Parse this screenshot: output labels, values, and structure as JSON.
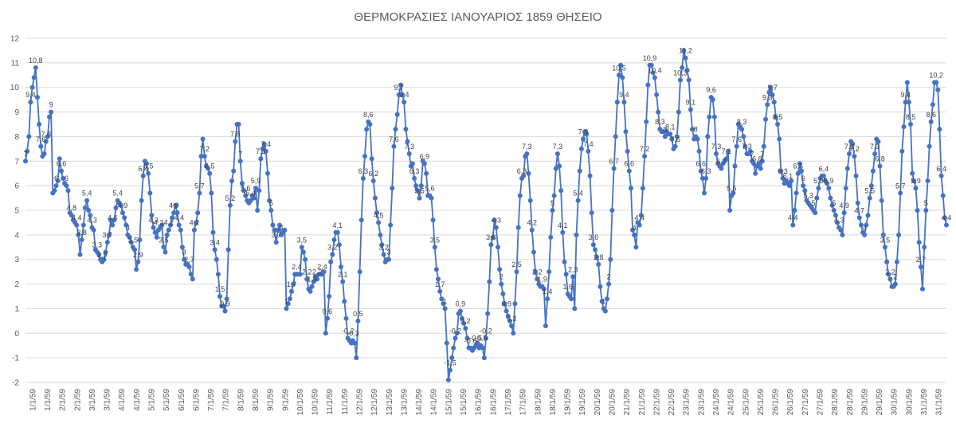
{
  "chart_data": {
    "type": "line",
    "title": "ΘΕΡΜΟΚΡΑΣΙΕΣ ΙΑΝΟΥΑΡΙΟΣ 1859 ΘΗΣΕΙΟ",
    "xlabel": "",
    "ylabel": "",
    "ylim": [
      -2,
      12
    ],
    "yticks": [
      -2,
      -1,
      0,
      1,
      2,
      3,
      4,
      5,
      6,
      7,
      8,
      9,
      10,
      11,
      12
    ],
    "grid": true,
    "legend": "none",
    "x_tick_labels": [
      "1/1/59",
      "1/1/59",
      "2/1/59",
      "2/1/59",
      "3/1/59",
      "3/1/59",
      "4/1/59",
      "4/1/59",
      "5/1/59",
      "5/1/59",
      "6/1/59",
      "6/1/59",
      "7/1/59",
      "7/1/59",
      "8/1/59",
      "8/1/59",
      "9/1/59",
      "9/1/59",
      "10/1/59",
      "10/1/59",
      "11/1/59",
      "11/1/59",
      "12/1/59",
      "12/1/59",
      "13/1/59",
      "13/1/59",
      "14/1/59",
      "14/1/59",
      "15/1/59",
      "15/1/59",
      "16/1/59",
      "16/1/59",
      "17/1/59",
      "17/1/59",
      "18/1/59",
      "18/1/59",
      "19/1/59",
      "19/1/59",
      "20/1/59",
      "20/1/59",
      "21/1/59",
      "21/1/59",
      "22/1/59",
      "22/1/59",
      "23/1/59",
      "23/1/59",
      "24/1/59",
      "24/1/59",
      "25/1/59",
      "25/1/59",
      "26/1/59",
      "26/1/59",
      "27/1/59",
      "27/1/59",
      "28/1/59",
      "28/1/59",
      "29/1/59",
      "29/1/59",
      "30/1/59",
      "30/1/59",
      "31/1/59",
      "31/1/59"
    ],
    "series": [
      {
        "color": "#4472c4",
        "values": [
          7.0,
          7.4,
          8.0,
          9.4,
          10.0,
          10.4,
          10.8,
          9.6,
          8.5,
          7.6,
          7.2,
          7.3,
          7.8,
          8.0,
          8.8,
          9.0,
          5.7,
          5.8,
          6.0,
          6.2,
          7.1,
          6.6,
          6.3,
          6.1,
          6.0,
          5.8,
          4.9,
          4.8,
          4.6,
          4.5,
          4.4,
          4.0,
          3.2,
          3.8,
          4.4,
          5.1,
          5.4,
          5.0,
          4.8,
          4.3,
          4.2,
          3.4,
          3.3,
          3.2,
          3.0,
          2.9,
          3.0,
          3.3,
          3.7,
          4.0,
          4.6,
          4.4,
          4.6,
          5.1,
          5.4,
          5.3,
          5.2,
          4.9,
          4.7,
          4.4,
          4.0,
          3.9,
          3.7,
          3.5,
          3.4,
          2.6,
          2.9,
          3.8,
          5.4,
          6.4,
          7.0,
          6.9,
          6.5,
          5.7,
          4.8,
          4.3,
          4.1,
          3.9,
          4.2,
          4.3,
          4.4,
          3.5,
          3.3,
          4.0,
          4.2,
          4.4,
          4.7,
          4.9,
          5.2,
          4.9,
          4.4,
          4.2,
          3.5,
          3.0,
          2.8,
          2.8,
          2.7,
          2.4,
          2.2,
          4.2,
          4.5,
          4.9,
          5.7,
          7.2,
          7.9,
          7.2,
          6.8,
          6.7,
          6.5,
          5.7,
          4.1,
          3.4,
          3.0,
          2.4,
          1.5,
          1.1,
          1.1,
          0.9,
          1.4,
          3.4,
          5.2,
          6.2,
          6.6,
          7.8,
          8.5,
          8.5,
          7.0,
          6.1,
          5.8,
          5.6,
          5.4,
          5.3,
          5.4,
          5.6,
          5.5,
          5.9,
          5.0,
          5.8,
          7.1,
          7.5,
          7.7,
          7.4,
          6.5,
          5.4,
          5.0,
          4.4,
          4.2,
          3.7,
          4.2,
          4.4,
          4.0,
          4.1,
          4.2,
          1.0,
          1.2,
          1.4,
          1.7,
          2.0,
          2.4,
          2.4,
          2.4,
          2.4,
          3.5,
          3.3,
          3.0,
          2.2,
          1.8,
          1.7,
          1.9,
          2.1,
          2.3,
          2.2,
          2.4,
          2.4,
          2.4,
          2.5,
          0.0,
          0.6,
          1.5,
          2.9,
          3.2,
          3.8,
          4.1,
          4.1,
          3.6,
          2.7,
          2.1,
          1.3,
          0.6,
          -0.2,
          -0.3,
          -0.4,
          -0.3,
          -0.4,
          -1.0,
          0.5,
          2.5,
          4.6,
          6.3,
          7.2,
          8.3,
          8.6,
          8.5,
          7.1,
          6.2,
          5.5,
          4.9,
          4.5,
          4.0,
          3.6,
          3.2,
          2.9,
          3.0,
          3.0,
          4.4,
          5.9,
          7.6,
          8.3,
          8.9,
          9.7,
          10.1,
          9.7,
          9.4,
          8.3,
          7.8,
          7.3,
          6.8,
          6.9,
          6.3,
          6.0,
          5.8,
          5.5,
          6.0,
          7.0,
          6.9,
          6.5,
          5.6,
          5.6,
          5.5,
          4.6,
          3.5,
          2.6,
          2.2,
          1.7,
          1.4,
          1.2,
          1.0,
          -0.4,
          -1.9,
          -1.5,
          -1.0,
          -0.6,
          -0.2,
          0.0,
          0.8,
          0.9,
          0.6,
          0.4,
          0.2,
          -0.2,
          -0.6,
          -0.6,
          -0.7,
          -0.6,
          -0.5,
          -0.4,
          -0.6,
          -0.5,
          -0.6,
          -1.0,
          -0.2,
          0.8,
          2.1,
          3.6,
          3.9,
          4.6,
          4.3,
          3.5,
          2.6,
          2.0,
          1.6,
          1.2,
          0.9,
          0.7,
          0.5,
          0.3,
          0.0,
          1.2,
          2.5,
          4.3,
          5.6,
          6.3,
          6.4,
          7.2,
          7.3,
          6.5,
          5.4,
          4.2,
          3.3,
          2.5,
          2.2,
          2.0,
          1.9,
          1.9,
          1.8,
          0.3,
          1.4,
          2.5,
          3.9,
          5.0,
          5.6,
          6.7,
          7.3,
          6.8,
          5.8,
          4.1,
          2.9,
          2.4,
          1.6,
          1.5,
          1.4,
          2.3,
          1.0,
          4.0,
          5.4,
          6.6,
          7.5,
          7.9,
          8.2,
          8.1,
          7.4,
          6.4,
          4.9,
          3.6,
          3.4,
          3.1,
          2.8,
          1.9,
          1.3,
          1.0,
          0.9,
          1.4,
          2.0,
          3.0,
          5.0,
          6.7,
          8.0,
          9.4,
          10.5,
          10.9,
          10.4,
          9.4,
          8.2,
          7.4,
          6.6,
          5.9,
          4.2,
          4.0,
          3.5,
          4.5,
          4.4,
          4.8,
          5.9,
          7.2,
          8.6,
          10.1,
          10.9,
          10.9,
          10.6,
          10.4,
          9.7,
          9.0,
          8.3,
          8.2,
          8.2,
          8.0,
          8.2,
          8.1,
          8.1,
          7.9,
          7.5,
          7.6,
          8.0,
          9.0,
          10.3,
          10.8,
          11.5,
          11.2,
          10.7,
          10.3,
          9.1,
          8.3,
          7.9,
          8.0,
          7.9,
          7.4,
          6.6,
          6.3,
          5.7,
          6.3,
          8.0,
          8.8,
          9.6,
          9.5,
          8.8,
          7.3,
          6.9,
          6.8,
          6.7,
          6.9,
          7.0,
          7.1,
          7.4,
          5.0,
          5.6,
          5.7,
          6.8,
          7.6,
          8.5,
          8.4,
          8.3,
          8.0,
          7.6,
          7.3,
          7.3,
          7.4,
          7.0,
          6.9,
          6.5,
          6.8,
          6.9,
          6.7,
          7.0,
          7.6,
          8.7,
          9.3,
          9.8,
          10.0,
          9.7,
          9.4,
          8.8,
          8.5,
          7.9,
          6.6,
          6.3,
          6.1,
          6.2,
          6.1,
          6.0,
          6.2,
          4.4,
          5.0,
          5.7,
          6.5,
          6.9,
          6.6,
          6.0,
          5.8,
          5.4,
          5.3,
          5.2,
          5.1,
          5.0,
          4.9,
          5.5,
          5.9,
          6.3,
          6.4,
          6.4,
          6.2,
          6.1,
          5.9,
          5.5,
          5.2,
          5.0,
          4.8,
          4.5,
          4.3,
          4.2,
          4.0,
          4.9,
          5.9,
          6.7,
          7.3,
          7.8,
          7.7,
          7.2,
          6.4,
          5.3,
          4.7,
          4.4,
          4.1,
          4.0,
          4.4,
          4.8,
          5.5,
          6.0,
          6.6,
          7.3,
          7.9,
          7.8,
          6.8,
          5.4,
          4.0,
          3.5,
          2.9,
          2.4,
          2.2,
          1.9,
          1.9,
          2.0,
          2.9,
          4.0,
          5.7,
          7.4,
          8.4,
          9.4,
          10.2,
          9.4,
          8.5,
          6.5,
          6.2,
          5.9,
          5.0,
          3.7,
          2.7,
          1.8,
          3.5,
          5.0,
          6.2,
          7.6,
          8.6,
          9.3,
          10.2,
          10.2,
          9.9,
          8.3,
          6.4,
          5.6,
          4.7,
          4.4
        ]
      }
    ]
  }
}
